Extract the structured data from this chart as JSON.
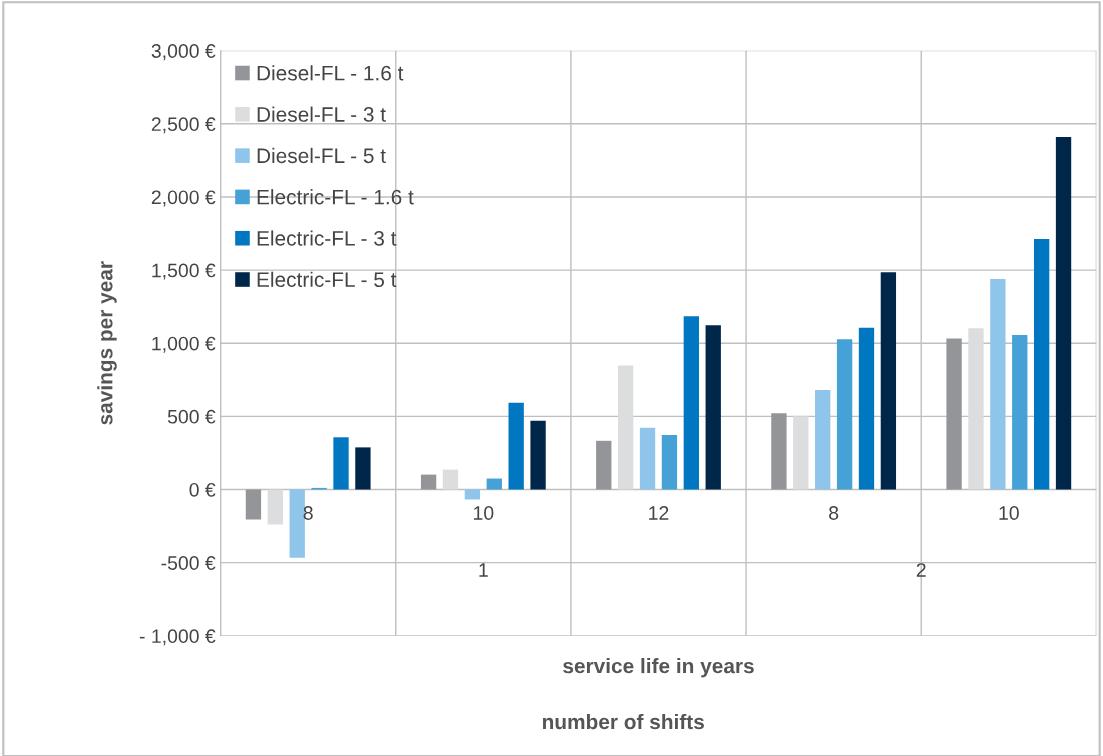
{
  "chart_data": {
    "type": "bar",
    "xlabel": "service life in years",
    "ylabel": "savings per year",
    "categories": [
      "8",
      "10",
      "12",
      "8",
      "10"
    ],
    "series": [
      {
        "name": "Diesel-FL - 1.6 t",
        "color": "#939598",
        "values": [
          -205,
          102,
          333,
          522,
          1033
        ]
      },
      {
        "name": "Diesel-FL - 3 t",
        "color": "#dcddde",
        "values": [
          -239,
          136,
          848,
          501,
          1102
        ]
      },
      {
        "name": "Diesel-FL - 5 t",
        "color": "#8fc5ea",
        "values": [
          -466,
          -68,
          423,
          681,
          1439
        ]
      },
      {
        "name": "Electric-FL - 1.6 t",
        "color": "#45a1d6",
        "values": [
          11,
          75,
          372,
          1028,
          1056
        ]
      },
      {
        "name": "Electric-FL - 3 t",
        "color": "#0077c0",
        "values": [
          357,
          593,
          1185,
          1106,
          1712
        ]
      },
      {
        "name": "Electric-FL - 5 t",
        "color": "#00264a",
        "values": [
          288,
          470,
          1123,
          1485,
          2410
        ]
      }
    ],
    "ylim": [
      -1000,
      3000
    ],
    "yticks": [
      {
        "value": -1000,
        "label": "- 1,000 €"
      },
      {
        "value": -500,
        "label": "-500 €"
      },
      {
        "value": 0,
        "label": "0 €"
      },
      {
        "value": 500,
        "label": "500 €"
      },
      {
        "value": 1000,
        "label": "1,000 €"
      },
      {
        "value": 1500,
        "label": "1,500 €"
      },
      {
        "value": 2000,
        "label": "2,000 €"
      },
      {
        "value": 2500,
        "label": "2,500 €"
      },
      {
        "value": 3000,
        "label": "3,000 €"
      }
    ],
    "grid": true,
    "legend": "top left",
    "annotations": [
      "1",
      "2",
      "number of shifts"
    ]
  }
}
